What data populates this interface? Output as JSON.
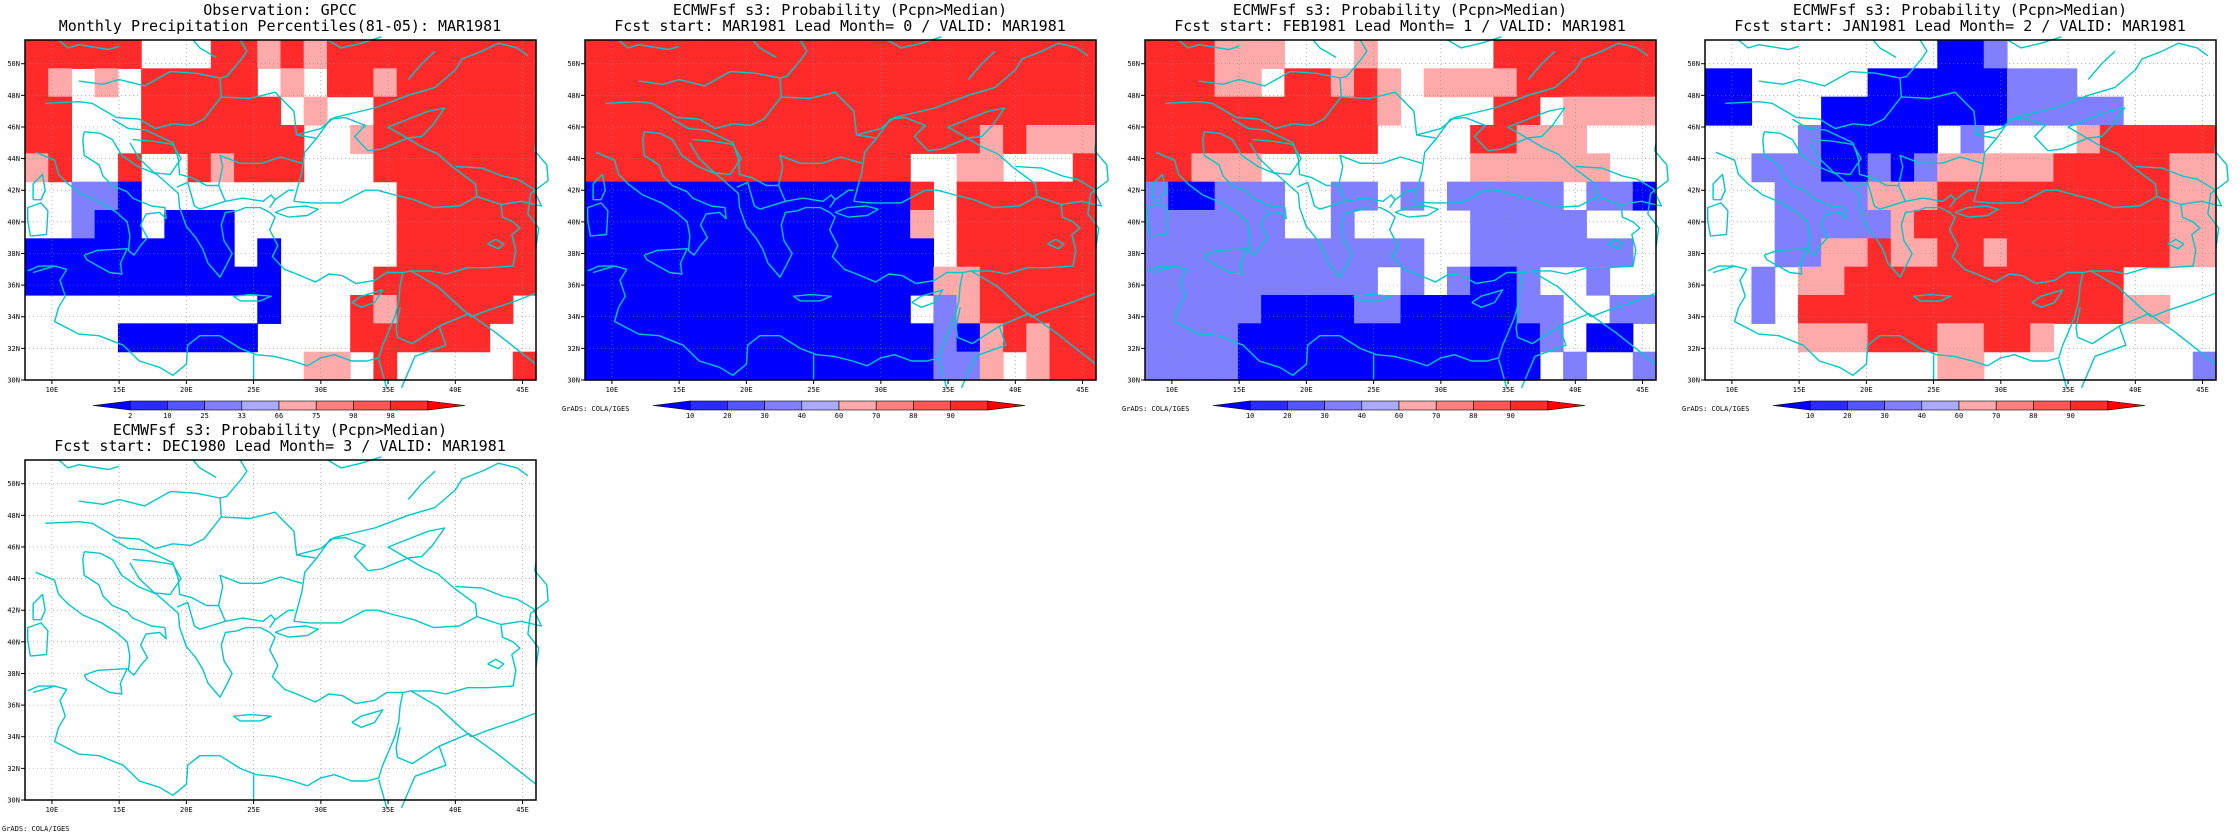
{
  "colors": {
    "blue": [
      "#0000ff",
      "#2b2bff",
      "#5555ff",
      "#8080ff",
      "#aaaaff"
    ],
    "red": [
      "#ffaaaa",
      "#ff8080",
      "#ff5555",
      "#ff2b2b",
      "#ff0000"
    ],
    "coast": "#00c8c8"
  },
  "lon_ticks": [
    "10E",
    "15E",
    "20E",
    "25E",
    "30E",
    "35E",
    "40E",
    "45E"
  ],
  "lat_ticks": [
    "30N",
    "32N",
    "34N",
    "36N",
    "38N",
    "40N",
    "42N",
    "44N",
    "46N",
    "48N",
    "50N"
  ],
  "grads_credit": "GrADS: COLA/IGES",
  "panels": [
    {
      "title1": "Observation: GPCC",
      "title2": "Monthly Precipitation Percentiles(81-05): MAR1981",
      "legend_labels": [
        "2",
        "10",
        "25",
        "33",
        "66",
        "75",
        "90",
        "98"
      ],
      "show_credit": false,
      "grid_codes": [
        "RRRRR...RRrRrRRRRRRRRR",
        "Rr.r.RRRRR.r.RRrRRRRRR",
        "RR...RRRRRR.r..RRRRRRR",
        "RR...RRRRRRR..rRRRRRRR",
        "rR..R..RrRRR...RRRRRRR",
        "..bbB...........RRRRRR",
        "..bBB.BBB.......RRRRRR",
        "BBBBBBBBB.B.....RRRRRR",
        "BBBBBBBBBBB....RRRRRRR",
        "..........B...RrRRRRR.",
        "....BBBBBB....RRRRRR..",
        "............rr.R.....R"
      ]
    },
    {
      "title1": "ECMWFsf s3: Probability (Pcpn>Median)",
      "title2": "Fcst start: MAR1981   Lead Month= 0 / VALID: MAR1981",
      "legend_labels": [
        "10",
        "20",
        "30",
        "40",
        "60",
        "70",
        "80",
        "90"
      ],
      "show_credit": true,
      "grid_codes": [
        "RRRRRRRRRRRRRRRRRRRRRR",
        "RRRRRRRRRRRRRRRRRRRRRR",
        "RRRRRRRRRRRRRRRRRRRRRR",
        "RRRRRRRRRRRRRRRRRrRrrr",
        "RRRRRRRRRRRRRR..rr...R",
        "BBBBBBBBBBBBBBR.RRRRRR",
        "BBBBBBBBBBBBBBr.RRRRRR",
        "BBBBBBBBBBBBBBB.RRRRRR",
        "BBBBBBBBBBBBBBBrrRRRRR",
        "BBBBBBBBBBBBBB.brRRRRR",
        "BBBBBBBBBBBBBBBbBrRrRR",
        "BBBBBBBBBBBBBBBbbr.rRR"
      ]
    },
    {
      "title1": "ECMWFsf s3: Probability (Pcpn>Median)",
      "title2": "Fcst start: FEB1981   Lead Month= 1 / VALID: MAR1981",
      "legend_labels": [
        "10",
        "20",
        "30",
        "40",
        "60",
        "70",
        "80",
        "90"
      ],
      "show_credit": true,
      "grid_codes": [
        "RRRrrr...r.....RRRRRRR",
        "RRRrr.RRrRr.rrrrRRRRRR",
        "RRRRRRRRRRr....RR.rrrr",
        "RRRRRRRRRR....RRrrr...",
        "RRrrr.........rrrrrr..",
        "bBBbbb..bb.b.bbbbb.bbB",
        "bbbbbb..b.....bbbbb...",
        "bbbbbbbbbbbb..bbbbbbb.",
        "bbbbbbbbbb.b.bBBb..b..",
        "bbbbbBBBBbbBBBBBbb..bb",
        "bbbbBBBBBBBBBBBBBb.BB.",
        "bbbbBBBBBBBBBBBBB.b..b"
      ]
    },
    {
      "title1": "ECMWFsf s3: Probability (Pcpn>Median)",
      "title2": "Fcst start: JAN1981   Lead Month= 2 / VALID: MAR1981",
      "legend_labels": [
        "10",
        "20",
        "30",
        "40",
        "60",
        "70",
        "80",
        "90"
      ],
      "show_credit": true,
      "grid_codes": [
        "..........BBb.........",
        "BB.....BBBBBBbbb......",
        "BB...BBBBBBBBbbbbb....",
        "....bBBBBB.b....rRRRRR",
        "..bbbBBbBbrrrrrRRRRRrr",
        "...bbbbrrrRRRRRRRRRRrr",
        "...bbbbbrRRRRRRRRRRRrr",
        "...bbrrRrrRRrRRRRRRRrr",
        "..b.rrRRRRRRRRRRRR....",
        "..b.RRRRRRRRRRRRRRrr..",
        "....rrrRRRrrRRr.......",
        "..........rr.........b"
      ]
    },
    {
      "title1": "ECMWFsf s3: Probability (Pcpn>Median)",
      "title2": "Fcst start: DEC1980   Lead Month= 3 / VALID: MAR1981",
      "legend_labels": [],
      "show_credit": true,
      "grid_codes": []
    }
  ]
}
